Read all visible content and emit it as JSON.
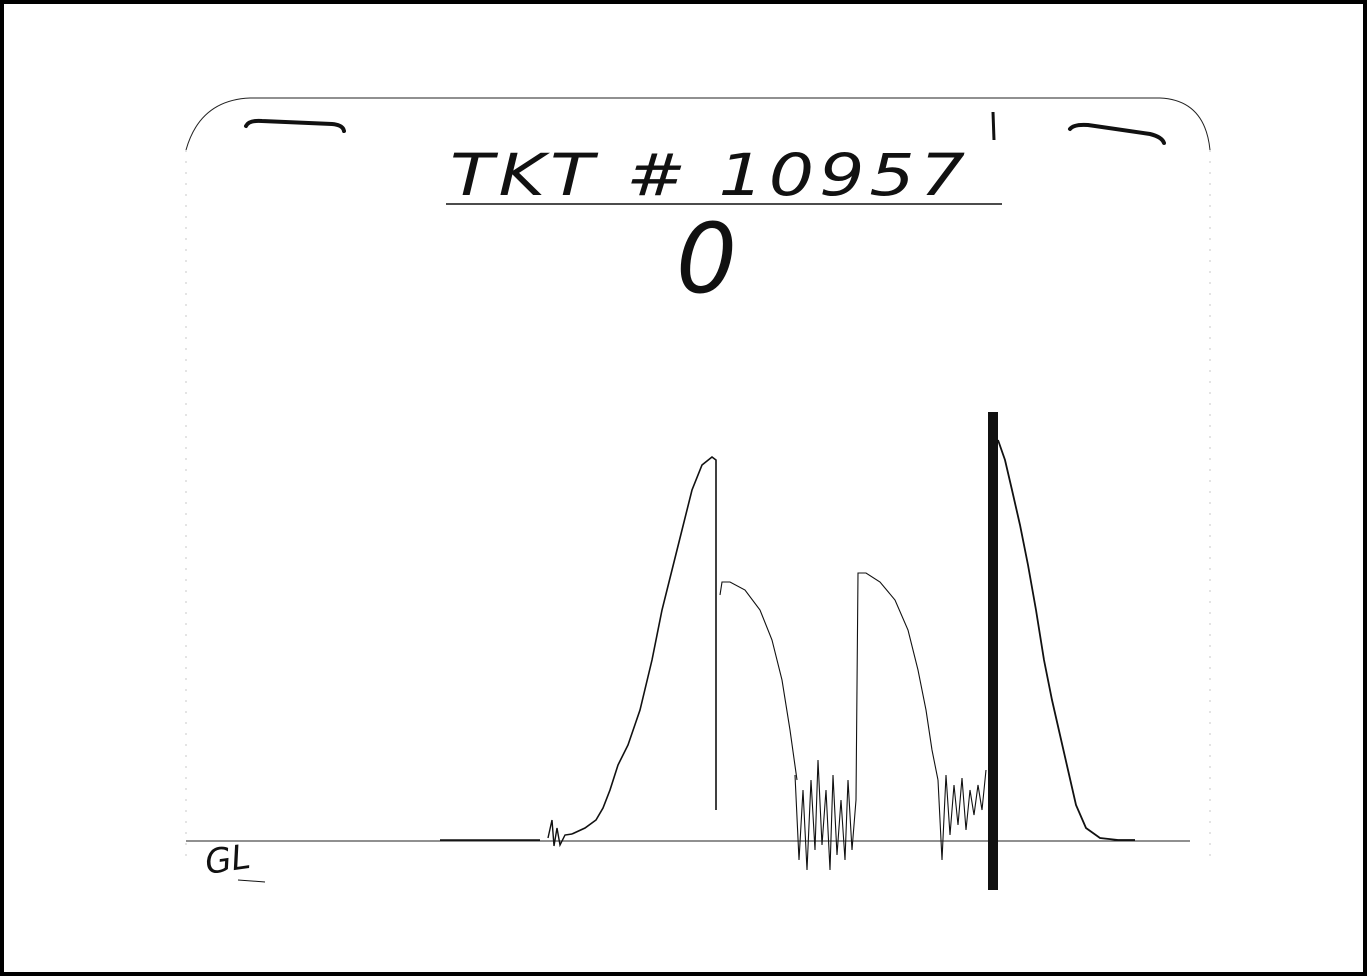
{
  "document": {
    "ticket_label": "TKT # 10957",
    "sub_mark": "0",
    "initials": "GL"
  },
  "colors": {
    "ink": "#111111",
    "frame": "#000000",
    "paper": "#ffffff"
  }
}
